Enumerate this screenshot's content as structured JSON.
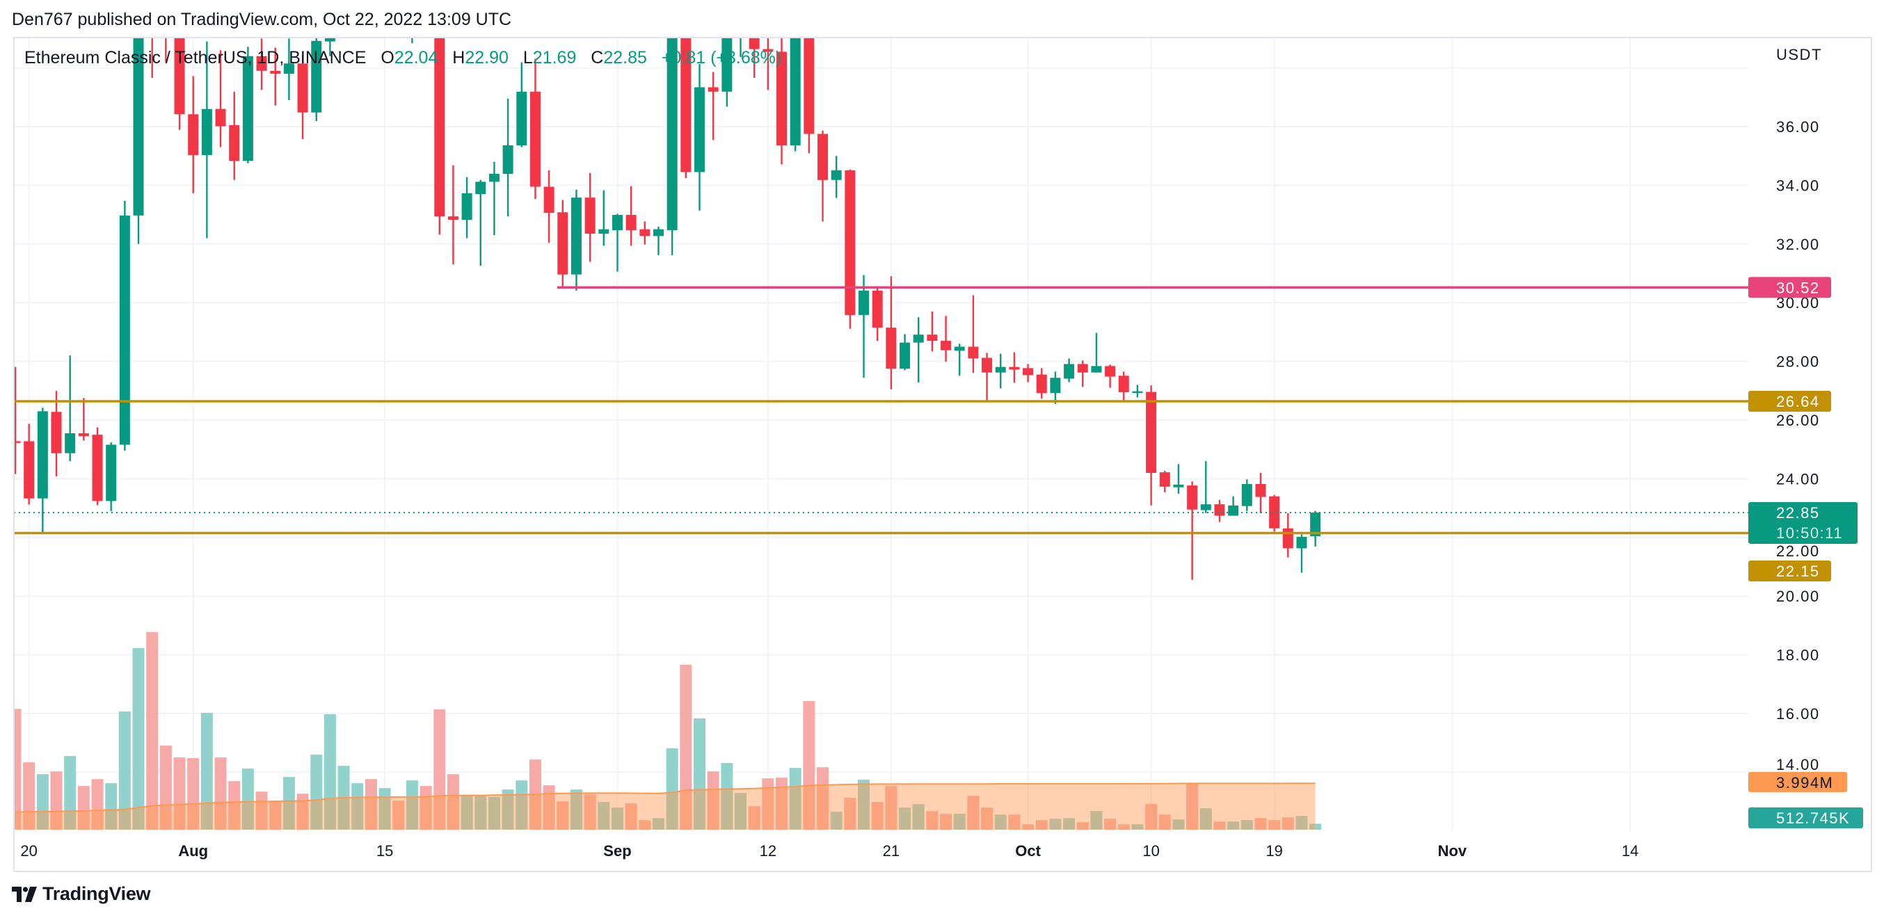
{
  "header": {
    "text": "Den767 published on TradingView.com, Oct 22, 2022 13:09 UTC"
  },
  "legend": {
    "symbol": "Ethereum Classic / TetherUS, 1D, BINANCE",
    "o_label": "O",
    "o_value": "22.04",
    "h_label": "H",
    "h_value": "22.90",
    "l_label": "L",
    "l_value": "21.69",
    "c_label": "C",
    "c_value": "22.85",
    "change": "+0.81 (+3.68%)"
  },
  "colors": {
    "up": "#089981",
    "down": "#f23645",
    "vol_up": "#92d2cc",
    "vol_down": "#f7a9a7",
    "ma": "#ff9850",
    "resistance": "#e8437a",
    "support": "#c29100",
    "grid": "#f0f3fa"
  },
  "price_axis": {
    "currency": "USDT",
    "ticks": [
      "36.00",
      "34.00",
      "32.00",
      "30.00",
      "28.00",
      "26.00",
      "24.00",
      "22.00",
      "20.00",
      "18.00",
      "16.00",
      "14.00"
    ],
    "tags": {
      "resistance": "30.52",
      "support_high": "26.64",
      "last_price": "22.85",
      "countdown": "10:50:11",
      "support_low": "22.15",
      "volume_ma": "3.994M",
      "volume": "512.745K"
    }
  },
  "time_axis": [
    {
      "label": "20",
      "date": "2022-07-20",
      "month": false
    },
    {
      "label": "Aug",
      "date": "2022-08-01",
      "month": true
    },
    {
      "label": "15",
      "date": "2022-08-15",
      "month": false
    },
    {
      "label": "Sep",
      "date": "2022-09-01",
      "month": true
    },
    {
      "label": "12",
      "date": "2022-09-12",
      "month": false
    },
    {
      "label": "21",
      "date": "2022-09-21",
      "month": false
    },
    {
      "label": "Oct",
      "date": "2022-10-01",
      "month": true
    },
    {
      "label": "10",
      "date": "2022-10-10",
      "month": false
    },
    {
      "label": "19",
      "date": "2022-10-19",
      "month": false
    },
    {
      "label": "Nov",
      "date": "2022-11-01",
      "month": true
    },
    {
      "label": "14",
      "date": "2022-11-14",
      "month": false
    }
  ],
  "chart_data": {
    "type": "candlestick",
    "title": "Ethereum Classic / TetherUS, 1D, BINANCE",
    "ylabel": "USDT",
    "ylim": [
      13.5,
      39.0
    ],
    "grid": true,
    "horizontal_lines": [
      {
        "value": 30.52,
        "color": "#e8437a",
        "from": "2022-08-28"
      },
      {
        "value": 26.64,
        "color": "#c29100",
        "from": "2022-07-19"
      },
      {
        "value": 22.15,
        "color": "#c29100",
        "from": "2022-07-19"
      }
    ],
    "last_price": 22.85,
    "columns": [
      "date",
      "open",
      "high",
      "low",
      "close",
      "volume_M",
      "direction"
    ],
    "candles": [
      [
        "2022-07-19",
        25.28,
        27.81,
        24.16,
        25.25,
        10.4,
        "d"
      ],
      [
        "2022-07-20",
        25.28,
        25.87,
        23.12,
        23.33,
        5.8,
        "d"
      ],
      [
        "2022-07-21",
        23.33,
        26.42,
        22.18,
        26.3,
        4.78,
        "u"
      ],
      [
        "2022-07-22",
        26.28,
        26.99,
        24.08,
        24.87,
        5.02,
        "d"
      ],
      [
        "2022-07-23",
        24.87,
        28.2,
        24.6,
        25.55,
        6.34,
        "u"
      ],
      [
        "2022-07-24",
        25.55,
        26.75,
        25.3,
        25.45,
        3.76,
        "d"
      ],
      [
        "2022-07-25",
        25.5,
        25.75,
        23.1,
        23.24,
        4.36,
        "d"
      ],
      [
        "2022-07-26",
        23.24,
        25.24,
        22.9,
        25.16,
        4.0,
        "u"
      ],
      [
        "2022-07-27",
        25.16,
        33.47,
        24.96,
        32.97,
        10.18,
        "u"
      ],
      [
        "2022-07-28",
        32.97,
        39.5,
        32.0,
        39.5,
        15.64,
        "u"
      ],
      [
        "2022-07-29",
        39.5,
        39.5,
        37.66,
        39.3,
        17.02,
        "d"
      ],
      [
        "2022-07-30",
        39.5,
        39.5,
        38.2,
        39.3,
        7.24,
        "d"
      ],
      [
        "2022-07-31",
        39.5,
        39.5,
        35.89,
        36.42,
        6.22,
        "d"
      ],
      [
        "2022-08-01",
        36.42,
        37.72,
        33.73,
        35.03,
        6.16,
        "d"
      ],
      [
        "2022-08-02",
        35.03,
        38.9,
        32.2,
        36.6,
        10.06,
        "u"
      ],
      [
        "2022-08-03",
        36.6,
        38.6,
        35.3,
        36.01,
        6.22,
        "d"
      ],
      [
        "2022-08-04",
        36.05,
        37.19,
        34.18,
        34.83,
        4.18,
        "d"
      ],
      [
        "2022-08-05",
        34.83,
        38.72,
        34.75,
        38.4,
        5.26,
        "u"
      ],
      [
        "2022-08-06",
        38.4,
        39.0,
        37.25,
        37.9,
        3.28,
        "d"
      ],
      [
        "2022-08-07",
        37.9,
        38.69,
        36.72,
        37.8,
        2.5,
        "d"
      ],
      [
        "2022-08-08",
        37.8,
        39.0,
        36.9,
        38.15,
        4.54,
        "u"
      ],
      [
        "2022-08-09",
        38.15,
        38.43,
        35.57,
        36.48,
        3.1,
        "d"
      ],
      [
        "2022-08-10",
        36.48,
        39.1,
        36.19,
        38.92,
        6.46,
        "u"
      ],
      [
        "2022-08-11",
        38.9,
        39.5,
        38.4,
        39.2,
        9.94,
        "u"
      ],
      [
        "2022-08-12",
        null,
        null,
        null,
        null,
        5.5,
        "u"
      ],
      [
        "2022-08-13",
        null,
        null,
        null,
        null,
        4.0,
        "u"
      ],
      [
        "2022-08-14",
        null,
        null,
        null,
        null,
        4.36,
        "d"
      ],
      [
        "2022-08-15",
        null,
        null,
        null,
        null,
        3.58,
        "u"
      ],
      [
        "2022-08-16",
        null,
        null,
        null,
        null,
        2.5,
        "d"
      ],
      [
        "2022-08-17",
        39.3,
        39.5,
        38.84,
        39.5,
        4.24,
        "u"
      ],
      [
        "2022-08-18",
        null,
        null,
        null,
        null,
        3.76,
        "d"
      ],
      [
        "2022-08-19",
        39.5,
        39.5,
        32.32,
        32.94,
        10.36,
        "d"
      ],
      [
        "2022-08-20",
        32.94,
        34.68,
        31.3,
        32.82,
        4.78,
        "d"
      ],
      [
        "2022-08-21",
        32.82,
        34.28,
        32.2,
        33.73,
        2.98,
        "u"
      ],
      [
        "2022-08-22",
        33.7,
        34.18,
        31.26,
        34.12,
        2.98,
        "u"
      ],
      [
        "2022-08-23",
        34.12,
        34.8,
        32.3,
        34.39,
        2.82,
        "u"
      ],
      [
        "2022-08-24",
        34.39,
        36.95,
        32.94,
        35.36,
        3.46,
        "u"
      ],
      [
        "2022-08-25",
        35.36,
        38.19,
        35.3,
        37.19,
        4.24,
        "u"
      ],
      [
        "2022-08-26",
        37.19,
        38.31,
        33.53,
        33.95,
        6.04,
        "d"
      ],
      [
        "2022-08-27",
        33.95,
        34.51,
        32.04,
        33.06,
        3.82,
        "d"
      ],
      [
        "2022-08-28",
        33.08,
        33.5,
        30.55,
        30.96,
        2.44,
        "d"
      ],
      [
        "2022-08-29",
        30.96,
        33.85,
        30.41,
        33.58,
        3.46,
        "u"
      ],
      [
        "2022-08-30",
        33.58,
        34.42,
        31.39,
        32.35,
        3.04,
        "d"
      ],
      [
        "2022-08-31",
        32.35,
        33.83,
        31.94,
        32.5,
        2.38,
        "u"
      ],
      [
        "2022-09-01",
        32.47,
        33.03,
        31.06,
        32.99,
        1.9,
        "u"
      ],
      [
        "2022-09-02",
        32.99,
        33.97,
        31.94,
        32.47,
        2.26,
        "d"
      ],
      [
        "2022-09-03",
        32.5,
        32.77,
        31.98,
        32.27,
        0.82,
        "d"
      ],
      [
        "2022-09-04",
        32.27,
        32.59,
        31.62,
        32.5,
        1.0,
        "u"
      ],
      [
        "2022-09-05",
        32.47,
        39.5,
        31.62,
        39.5,
        7.0,
        "u"
      ],
      [
        "2022-09-06",
        39.5,
        39.5,
        34.24,
        34.45,
        14.2,
        "d"
      ],
      [
        "2022-09-07",
        34.45,
        38.13,
        33.14,
        37.34,
        9.58,
        "u"
      ],
      [
        "2022-09-08",
        37.34,
        37.86,
        35.54,
        37.19,
        5.02,
        "d"
      ],
      [
        "2022-09-09",
        37.19,
        39.5,
        36.68,
        39.5,
        5.74,
        "u"
      ],
      [
        "2022-09-10",
        39.3,
        39.5,
        38.37,
        39.5,
        3.16,
        "u"
      ],
      [
        "2022-09-11",
        39.5,
        39.5,
        37.66,
        38.64,
        2.02,
        "d"
      ],
      [
        "2022-09-12",
        38.64,
        39.3,
        37.25,
        38.55,
        4.42,
        "d"
      ],
      [
        "2022-09-13",
        38.55,
        39.5,
        34.71,
        35.36,
        4.48,
        "d"
      ],
      [
        "2022-09-14",
        35.36,
        39.5,
        35.16,
        39.5,
        5.32,
        "u"
      ],
      [
        "2022-09-15",
        39.5,
        39.5,
        35.09,
        35.75,
        11.08,
        "d"
      ],
      [
        "2022-09-16",
        35.75,
        35.86,
        32.77,
        34.18,
        5.38,
        "d"
      ],
      [
        "2022-09-17",
        34.18,
        35.0,
        33.57,
        34.51,
        1.54,
        "u"
      ],
      [
        "2022-09-18",
        34.51,
        34.54,
        29.11,
        29.58,
        2.74,
        "d"
      ],
      [
        "2022-09-19",
        29.58,
        30.94,
        27.44,
        30.41,
        4.3,
        "u"
      ],
      [
        "2022-09-20",
        30.41,
        30.5,
        28.7,
        29.15,
        2.38,
        "d"
      ],
      [
        "2022-09-21",
        29.15,
        30.9,
        27.05,
        27.75,
        3.76,
        "d"
      ],
      [
        "2022-09-22",
        27.75,
        28.93,
        27.7,
        28.64,
        1.9,
        "u"
      ],
      [
        "2022-09-23",
        28.64,
        29.5,
        27.28,
        28.91,
        2.2,
        "u"
      ],
      [
        "2022-09-24",
        28.91,
        29.7,
        28.34,
        28.7,
        1.6,
        "d"
      ],
      [
        "2022-09-25",
        28.7,
        29.55,
        27.99,
        28.38,
        1.36,
        "d"
      ],
      [
        "2022-09-26",
        28.36,
        28.6,
        27.51,
        28.5,
        1.36,
        "u"
      ],
      [
        "2022-09-27",
        28.5,
        30.25,
        27.61,
        28.1,
        2.92,
        "d"
      ],
      [
        "2022-09-28",
        28.12,
        28.29,
        26.64,
        27.62,
        1.9,
        "d"
      ],
      [
        "2022-09-29",
        27.62,
        28.26,
        27.08,
        27.81,
        1.3,
        "u"
      ],
      [
        "2022-09-30",
        27.81,
        28.31,
        27.27,
        27.72,
        1.3,
        "d"
      ],
      [
        "2022-10-01",
        27.77,
        27.91,
        27.29,
        27.53,
        0.46,
        "d"
      ],
      [
        "2022-10-02",
        27.55,
        27.77,
        26.73,
        26.92,
        0.82,
        "d"
      ],
      [
        "2022-10-03",
        26.92,
        27.65,
        26.55,
        27.44,
        0.94,
        "u"
      ],
      [
        "2022-10-04",
        27.41,
        28.1,
        27.29,
        27.91,
        1.0,
        "u"
      ],
      [
        "2022-10-05",
        27.91,
        28.03,
        27.13,
        27.62,
        0.64,
        "d"
      ],
      [
        "2022-10-06",
        27.62,
        28.97,
        27.62,
        27.84,
        1.6,
        "u"
      ],
      [
        "2022-10-07",
        27.84,
        27.89,
        27.1,
        27.48,
        0.94,
        "d"
      ],
      [
        "2022-10-08",
        27.51,
        27.65,
        26.66,
        26.95,
        0.46,
        "d"
      ],
      [
        "2022-10-09",
        26.95,
        27.2,
        26.77,
        26.98,
        0.46,
        "u"
      ],
      [
        "2022-10-10",
        26.96,
        27.18,
        23.09,
        24.2,
        2.2,
        "d"
      ],
      [
        "2022-10-11",
        24.22,
        24.27,
        23.54,
        23.73,
        1.3,
        "d"
      ],
      [
        "2022-10-12",
        23.71,
        24.5,
        23.49,
        23.8,
        0.88,
        "u"
      ],
      [
        "2022-10-13",
        23.77,
        23.91,
        20.56,
        22.95,
        3.94,
        "d"
      ],
      [
        "2022-10-14",
        22.93,
        24.6,
        22.83,
        23.13,
        1.84,
        "u"
      ],
      [
        "2022-10-15",
        23.13,
        23.28,
        22.53,
        22.74,
        0.7,
        "d"
      ],
      [
        "2022-10-16",
        22.74,
        23.4,
        22.74,
        23.09,
        0.7,
        "u"
      ],
      [
        "2022-10-17",
        23.07,
        23.98,
        22.9,
        23.82,
        0.82,
        "u"
      ],
      [
        "2022-10-18",
        23.82,
        24.2,
        22.83,
        23.38,
        1.0,
        "d"
      ],
      [
        "2022-10-19",
        23.4,
        23.45,
        22.2,
        22.31,
        0.82,
        "d"
      ],
      [
        "2022-10-20",
        22.31,
        22.83,
        21.32,
        21.63,
        1.06,
        "d"
      ],
      [
        "2022-10-21",
        21.63,
        22.1,
        20.8,
        22.02,
        1.18,
        "u"
      ],
      [
        "2022-10-22",
        22.04,
        22.9,
        21.69,
        22.85,
        0.513,
        "u"
      ]
    ],
    "volume_ma_M": [
      1.52,
      1.54,
      1.56,
      1.58,
      1.6,
      1.62,
      1.66,
      1.7,
      1.75,
      1.9,
      2.05,
      2.12,
      2.18,
      2.22,
      2.28,
      2.35,
      2.38,
      2.4,
      2.42,
      2.44,
      2.46,
      2.48,
      2.55,
      2.7,
      2.75,
      2.78,
      2.8,
      2.8,
      2.82,
      2.82,
      2.84,
      2.9,
      2.95,
      2.96,
      2.96,
      2.98,
      3.0,
      3.02,
      3.05,
      3.1,
      3.12,
      3.14,
      3.15,
      3.15,
      3.15,
      3.14,
      3.13,
      3.12,
      3.2,
      3.4,
      3.45,
      3.47,
      3.5,
      3.52,
      3.55,
      3.6,
      3.65,
      3.7,
      3.8,
      3.85,
      3.87,
      3.9,
      3.92,
      3.93,
      3.93,
      3.93,
      3.94,
      3.94,
      3.94,
      3.94,
      3.94,
      3.94,
      3.95,
      3.95,
      3.95,
      3.95,
      3.95,
      3.95,
      3.95,
      3.95,
      3.95,
      3.96,
      3.96,
      3.96,
      3.97,
      3.98,
      3.99,
      3.99,
      3.99,
      3.99,
      3.99,
      3.99,
      3.99,
      3.994,
      3.994,
      3.994
    ]
  },
  "footer": {
    "brand": "TradingView"
  }
}
